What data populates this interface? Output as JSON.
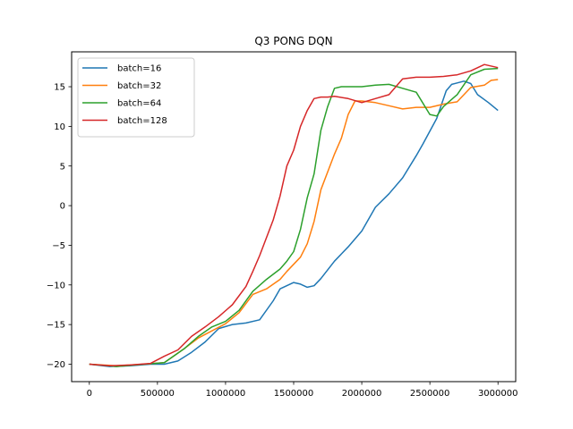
{
  "chart_data": {
    "type": "line",
    "title": "Q3 PONG DQN",
    "xlabel": "",
    "ylabel": "",
    "xlim": [
      -130000,
      3130000
    ],
    "ylim": [
      -22.2,
      19.4
    ],
    "xticks": [
      0,
      500000,
      1000000,
      1500000,
      2000000,
      2500000,
      3000000
    ],
    "xtick_labels": [
      "0",
      "500000",
      "1000000",
      "1500000",
      "2000000",
      "2500000",
      "3000000"
    ],
    "yticks": [
      -20,
      -15,
      -10,
      -5,
      0,
      5,
      10,
      15
    ],
    "ytick_labels": [
      "−20",
      "−15",
      "−10",
      "−5",
      "0",
      "5",
      "10",
      "15"
    ],
    "grid": false,
    "legend_position": "top-left",
    "series": [
      {
        "name": "batch=16",
        "color": "#1f77b4",
        "points": [
          [
            0,
            -20
          ],
          [
            150000,
            -20.3
          ],
          [
            300000,
            -20.2
          ],
          [
            450000,
            -20
          ],
          [
            550000,
            -20
          ],
          [
            650000,
            -19.6
          ],
          [
            750000,
            -18.5
          ],
          [
            850000,
            -17.2
          ],
          [
            950000,
            -15.5
          ],
          [
            1050000,
            -15
          ],
          [
            1150000,
            -14.8
          ],
          [
            1250000,
            -14.4
          ],
          [
            1350000,
            -12
          ],
          [
            1400000,
            -10.5
          ],
          [
            1500000,
            -9.7
          ],
          [
            1550000,
            -9.9
          ],
          [
            1600000,
            -10.3
          ],
          [
            1650000,
            -10.1
          ],
          [
            1700000,
            -9.2
          ],
          [
            1800000,
            -7
          ],
          [
            1900000,
            -5.2
          ],
          [
            2000000,
            -3.2
          ],
          [
            2100000,
            -0.2
          ],
          [
            2200000,
            1.5
          ],
          [
            2300000,
            3.5
          ],
          [
            2400000,
            6.3
          ],
          [
            2450000,
            7.8
          ],
          [
            2550000,
            11
          ],
          [
            2620000,
            14.5
          ],
          [
            2660000,
            15.3
          ],
          [
            2750000,
            15.7
          ],
          [
            2800000,
            15.4
          ],
          [
            2850000,
            14
          ],
          [
            2930000,
            13
          ],
          [
            3000000,
            12
          ]
        ]
      },
      {
        "name": "batch=32",
        "color": "#ff7f0e",
        "points": [
          [
            0,
            -20
          ],
          [
            200000,
            -20.2
          ],
          [
            400000,
            -20
          ],
          [
            550000,
            -19.8
          ],
          [
            700000,
            -18
          ],
          [
            800000,
            -16.7
          ],
          [
            900000,
            -15.8
          ],
          [
            1000000,
            -14.9
          ],
          [
            1100000,
            -13.5
          ],
          [
            1200000,
            -11.2
          ],
          [
            1300000,
            -10.5
          ],
          [
            1400000,
            -9.3
          ],
          [
            1450000,
            -8.3
          ],
          [
            1550000,
            -6.5
          ],
          [
            1600000,
            -4.8
          ],
          [
            1650000,
            -2
          ],
          [
            1700000,
            2
          ],
          [
            1800000,
            6.5
          ],
          [
            1850000,
            8.5
          ],
          [
            1900000,
            11.5
          ],
          [
            1950000,
            13.2
          ],
          [
            2000000,
            13.2
          ],
          [
            2100000,
            13
          ],
          [
            2200000,
            12.6
          ],
          [
            2300000,
            12.2
          ],
          [
            2400000,
            12.4
          ],
          [
            2500000,
            12.4
          ],
          [
            2600000,
            12.8
          ],
          [
            2700000,
            13.1
          ],
          [
            2800000,
            14.9
          ],
          [
            2900000,
            15.2
          ],
          [
            2950000,
            15.8
          ],
          [
            3000000,
            15.9
          ]
        ]
      },
      {
        "name": "batch=64",
        "color": "#2ca02c",
        "points": [
          [
            0,
            -20
          ],
          [
            200000,
            -20.3
          ],
          [
            400000,
            -20
          ],
          [
            550000,
            -19.8
          ],
          [
            700000,
            -18
          ],
          [
            800000,
            -16.5
          ],
          [
            900000,
            -15.3
          ],
          [
            1000000,
            -14.6
          ],
          [
            1100000,
            -13.2
          ],
          [
            1200000,
            -10.8
          ],
          [
            1300000,
            -9.3
          ],
          [
            1400000,
            -8
          ],
          [
            1450000,
            -7
          ],
          [
            1500000,
            -5.8
          ],
          [
            1550000,
            -3
          ],
          [
            1600000,
            1
          ],
          [
            1650000,
            4
          ],
          [
            1700000,
            9.5
          ],
          [
            1750000,
            12.5
          ],
          [
            1800000,
            14.8
          ],
          [
            1850000,
            15
          ],
          [
            1900000,
            15
          ],
          [
            2000000,
            15
          ],
          [
            2100000,
            15.2
          ],
          [
            2200000,
            15.3
          ],
          [
            2300000,
            14.8
          ],
          [
            2400000,
            14.3
          ],
          [
            2500000,
            11.5
          ],
          [
            2550000,
            11.3
          ],
          [
            2600000,
            12.5
          ],
          [
            2700000,
            14
          ],
          [
            2800000,
            16.5
          ],
          [
            2900000,
            17.2
          ],
          [
            3000000,
            17.3
          ]
        ]
      },
      {
        "name": "batch=128",
        "color": "#d62728",
        "points": [
          [
            0,
            -20
          ],
          [
            150000,
            -20.2
          ],
          [
            300000,
            -20.1
          ],
          [
            450000,
            -19.9
          ],
          [
            550000,
            -19
          ],
          [
            650000,
            -18.2
          ],
          [
            750000,
            -16.5
          ],
          [
            850000,
            -15.3
          ],
          [
            950000,
            -14
          ],
          [
            1050000,
            -12.5
          ],
          [
            1150000,
            -10.2
          ],
          [
            1200000,
            -8.3
          ],
          [
            1250000,
            -6.3
          ],
          [
            1350000,
            -1.8
          ],
          [
            1400000,
            1.2
          ],
          [
            1450000,
            5
          ],
          [
            1500000,
            7
          ],
          [
            1550000,
            10
          ],
          [
            1600000,
            12
          ],
          [
            1650000,
            13.5
          ],
          [
            1700000,
            13.7
          ],
          [
            1750000,
            13.7
          ],
          [
            1800000,
            13.8
          ],
          [
            1900000,
            13.5
          ],
          [
            2000000,
            13
          ],
          [
            2100000,
            13.5
          ],
          [
            2200000,
            14
          ],
          [
            2300000,
            16
          ],
          [
            2400000,
            16.2
          ],
          [
            2500000,
            16.2
          ],
          [
            2600000,
            16.3
          ],
          [
            2700000,
            16.5
          ],
          [
            2800000,
            17
          ],
          [
            2900000,
            17.8
          ],
          [
            3000000,
            17.4
          ]
        ]
      }
    ]
  }
}
